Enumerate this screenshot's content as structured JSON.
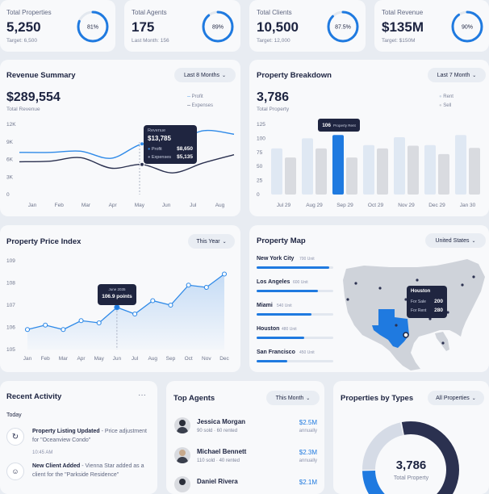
{
  "stats": [
    {
      "label": "Total Properties",
      "value": "5,250",
      "sub": "Target: 6,500",
      "pct": "81%",
      "frac": 0.81
    },
    {
      "label": "Total Agents",
      "value": "175",
      "sub": "Last Month: 156",
      "pct": "89%",
      "frac": 0.89
    },
    {
      "label": "Total Clients",
      "value": "10,500",
      "sub": "Target: 12,000",
      "pct": "87.5%",
      "frac": 0.875
    },
    {
      "label": "Total Revenue",
      "value": "$135M",
      "sub": "Target: $150M",
      "pct": "90%",
      "frac": 0.9
    }
  ],
  "revenue": {
    "title": "Revenue Summary",
    "filter": "Last 8 Months",
    "total": "$289,554",
    "total_label": "Total Revenue",
    "legend_profit": "Profit",
    "legend_expenses": "Expenses",
    "tooltip": {
      "title": "Revenue",
      "value": "$13,785",
      "profit_label": "Profit",
      "profit": "$8,650",
      "expenses_label": "Expenses",
      "expenses": "$5,135"
    }
  },
  "breakdown": {
    "title": "Property Breakdown",
    "filter": "Last 7 Month",
    "total": "3,786",
    "total_label": "Total Property",
    "legend_rent": "Rent",
    "legend_sell": "Sell",
    "tooltip_value": "106",
    "tooltip_label": "Property Rent"
  },
  "price_index": {
    "title": "Property Price Index",
    "filter": "This Year",
    "tooltip_date": "June 2035",
    "tooltip_value": "106.9 points"
  },
  "map": {
    "title": "Property Map",
    "filter": "United States",
    "cities": [
      {
        "name": "New York City",
        "units": "700 Unit",
        "frac": 0.95
      },
      {
        "name": "Los Angeles",
        "units": "600 Unit",
        "frac": 0.8
      },
      {
        "name": "Miami",
        "units": "540 Unit",
        "frac": 0.72
      },
      {
        "name": "Houston",
        "units": "480 Unit",
        "frac": 0.62
      },
      {
        "name": "San Francisco",
        "units": "450 Unit",
        "frac": 0.4
      }
    ],
    "tooltip": {
      "city": "Houston",
      "sale_label": "For Sale",
      "sale": "200",
      "rent_label": "For Rent",
      "rent": "280"
    }
  },
  "activity": {
    "title": "Recent Activity",
    "more": "···",
    "day": "Today",
    "items": [
      {
        "bold": "Property Listing Updated",
        "rest": " - Price adjustment for \"Oceanview Condo\"",
        "time": "10:45 AM"
      },
      {
        "bold": "New Client Added",
        "rest": " - Vienna Star added as a client for the \"Parkside Residence\"",
        "time": ""
      }
    ]
  },
  "agents": {
    "title": "Top Agents",
    "filter": "This Month",
    "items": [
      {
        "name": "Jessica Morgan",
        "detail": "90 sold · 60 rented",
        "amount": "$2.5M",
        "period": "annually"
      },
      {
        "name": "Michael Bennett",
        "detail": "110 sold · 40 rented",
        "amount": "$2.3M",
        "period": "annually"
      },
      {
        "name": "Daniel Rivera",
        "detail": "",
        "amount": "$2.1M",
        "period": ""
      }
    ]
  },
  "types": {
    "title": "Properties by Types",
    "filter": "All Properties",
    "total": "3,786",
    "total_label": "Total Property"
  },
  "colors": {
    "accent": "#1f7ae0",
    "navy": "#2b3150",
    "light_bar": "#dfe8f3",
    "grey_bar": "#d9dbe0"
  },
  "chart_data": [
    {
      "type": "line",
      "title": "Revenue Summary",
      "categories": [
        "Jan",
        "Feb",
        "Mar",
        "Apr",
        "May",
        "Jun",
        "Jul",
        "Aug"
      ],
      "yticks": [
        "0",
        "3K",
        "6K",
        "9K",
        "12K"
      ],
      "ylim": [
        0,
        12000
      ],
      "series": [
        {
          "name": "Profit",
          "values": [
            7200,
            7200,
            7400,
            6200,
            8650,
            8800,
            10900,
            10300
          ]
        },
        {
          "name": "Expenses",
          "values": [
            5600,
            5700,
            6300,
            4500,
            5135,
            3700,
            5400,
            6800
          ]
        }
      ]
    },
    {
      "type": "bar",
      "title": "Property Breakdown",
      "categories": [
        "Jul 29",
        "Aug 29",
        "Sep 29",
        "Oct 29",
        "Nov 29",
        "Dec 29",
        "Jan 30"
      ],
      "yticks": [
        "0",
        "25",
        "50",
        "75",
        "100",
        "125"
      ],
      "ylim": [
        0,
        125
      ],
      "series": [
        {
          "name": "Rent",
          "values": [
            82,
            100,
            106,
            88,
            102,
            88,
            106
          ]
        },
        {
          "name": "Sell",
          "values": [
            66,
            82,
            66,
            82,
            87,
            72,
            83
          ]
        }
      ]
    },
    {
      "type": "area",
      "title": "Property Price Index",
      "categories": [
        "Jan",
        "Feb",
        "Mar",
        "Apr",
        "May",
        "Jun",
        "Jul",
        "Aug",
        "Sep",
        "Oct",
        "Nov",
        "Dec"
      ],
      "yticks": [
        "105",
        "106",
        "107",
        "108",
        "109"
      ],
      "ylim": [
        105,
        109
      ],
      "series": [
        {
          "name": "Price Index",
          "values": [
            105.9,
            106.1,
            105.9,
            106.3,
            106.2,
            106.9,
            106.6,
            107.2,
            107,
            107.9,
            107.8,
            108.4
          ]
        }
      ]
    },
    {
      "type": "pie",
      "title": "Properties by Types",
      "series": [
        {
          "values": [
            0.22,
            0.58,
            0.2
          ]
        }
      ]
    }
  ]
}
